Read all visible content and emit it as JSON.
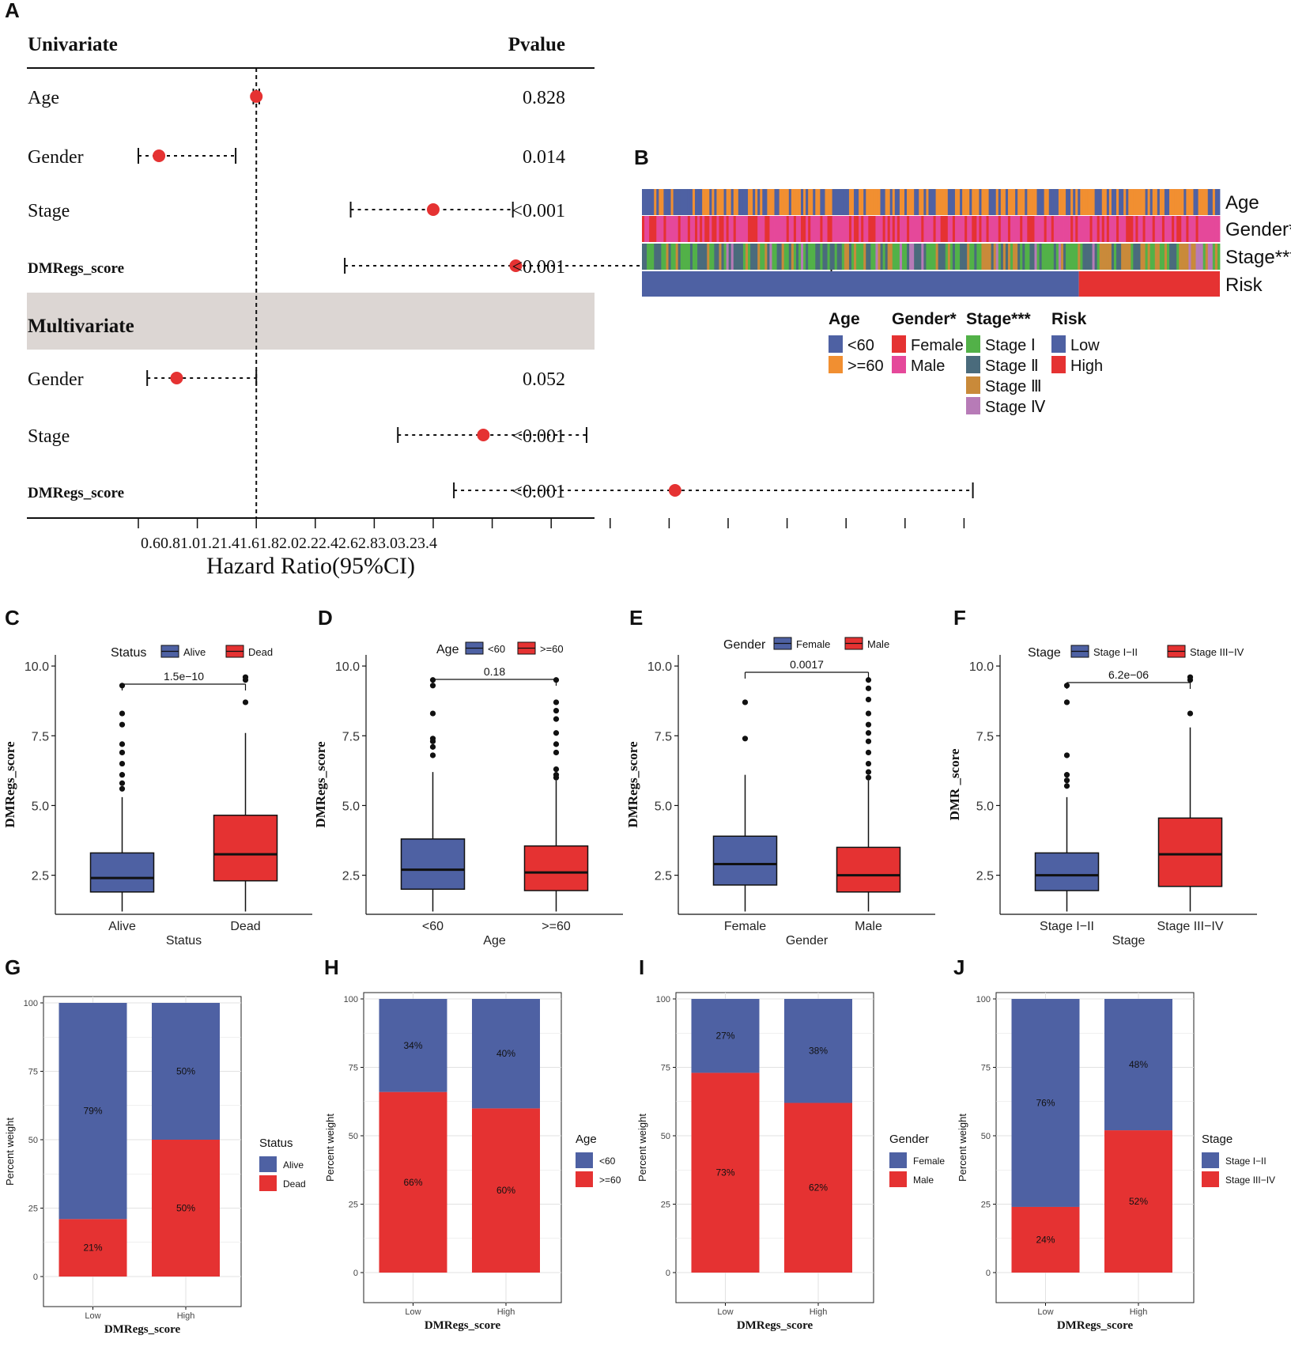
{
  "colors": {
    "blue": "#4e61a3",
    "red": "#e53232",
    "orange": "#f18f31",
    "pink": "#e5489a",
    "green": "#52b148",
    "slate": "#4a6b7c",
    "ochre": "#c98a3a",
    "violet": "#b77bb7",
    "shade": "#dcd6d3"
  },
  "panel_labels": [
    "A",
    "B",
    "C",
    "D",
    "E",
    "F",
    "G",
    "H",
    "I",
    "J"
  ],
  "chart_data": [
    {
      "panel": "A",
      "type": "forest",
      "header_left": "Univariate",
      "header_right": "Pvalue",
      "multi_header": "Multivariate",
      "xlabel": "Hazard Ratio(95%CI)",
      "xlim": [
        0.6,
        3.4
      ],
      "xticks": [
        0.6,
        0.8,
        1.0,
        1.2,
        1.4,
        1.6,
        1.8,
        2.0,
        2.2,
        2.4,
        2.6,
        2.8,
        3.0,
        3.2,
        3.4
      ],
      "xtick_labels": "0.60.81.01.21.41.61.82.02.22.42.62.83.03.23.4",
      "univariate": [
        {
          "name": "Age",
          "hr": 1.0,
          "lo": 0.99,
          "hi": 1.01,
          "p": "0.828",
          "bold": false
        },
        {
          "name": "Gender",
          "hr": 0.67,
          "lo": 0.6,
          "hi": 0.93,
          "p": "0.014",
          "bold": false
        },
        {
          "name": "Stage",
          "hr": 1.6,
          "lo": 1.32,
          "hi": 1.87,
          "p": "<0.001",
          "bold": false
        },
        {
          "name": "DMRegs_score",
          "hr": 1.88,
          "lo": 1.3,
          "hi": 2.95,
          "p": "<0.001",
          "bold": true
        }
      ],
      "multivariate": [
        {
          "name": "Gender",
          "hr": 0.73,
          "lo": 0.63,
          "hi": 1.0,
          "p": "0.052",
          "bold": false
        },
        {
          "name": "Stage",
          "hr": 1.77,
          "lo": 1.48,
          "hi": 2.12,
          "p": "<0.001",
          "bold": false
        },
        {
          "name": "DMRegs_score",
          "hr": 2.42,
          "lo": 1.67,
          "hi": 3.43,
          "p": "<0.001",
          "bold": true
        }
      ]
    },
    {
      "panel": "B",
      "type": "heatmap",
      "rows": [
        "Age",
        "Gender*",
        "Stage***",
        "Risk"
      ],
      "risk_low_fraction": 0.756,
      "legends": [
        {
          "title": "Age",
          "items": [
            {
              "label": "<60",
              "color": "#4e61a3"
            },
            {
              "label": ">=60",
              "color": "#f18f31"
            }
          ]
        },
        {
          "title": "Gender*",
          "items": [
            {
              "label": "Female",
              "color": "#e53232"
            },
            {
              "label": "Male",
              "color": "#e5489a"
            }
          ]
        },
        {
          "title": "Stage***",
          "items": [
            {
              "label": "Stage Ⅰ",
              "color": "#52b148"
            },
            {
              "label": "Stage Ⅱ",
              "color": "#4a6b7c"
            },
            {
              "label": "Stage Ⅲ",
              "color": "#c98a3a"
            },
            {
              "label": "Stage Ⅳ",
              "color": "#b77bb7"
            }
          ]
        },
        {
          "title": "Risk",
          "items": [
            {
              "label": "Low",
              "color": "#4e61a3"
            },
            {
              "label": "High",
              "color": "#e53232"
            }
          ]
        }
      ]
    },
    {
      "panel": "C",
      "type": "boxplot",
      "legend_title": "Status",
      "groups": [
        "Alive",
        "Dead"
      ],
      "xlabel": "Status",
      "ylabel": "DMRegs_score",
      "ylim": [
        1.1,
        10.4
      ],
      "yticks": [
        2.5,
        5.0,
        7.5,
        10.0
      ],
      "pvalue": "1.5e−10",
      "boxes": [
        {
          "group": "Alive",
          "min": 1.2,
          "q1": 1.9,
          "median": 2.4,
          "q3": 3.3,
          "max": 5.3,
          "outliers": [
            5.6,
            5.8,
            6.1,
            6.5,
            6.9,
            7.2,
            7.9,
            8.3,
            9.3
          ]
        },
        {
          "group": "Dead",
          "min": 1.2,
          "q1": 2.3,
          "median": 3.25,
          "q3": 4.65,
          "max": 7.6,
          "outliers": [
            8.7,
            9.5,
            9.6
          ]
        }
      ]
    },
    {
      "panel": "D",
      "type": "boxplot",
      "legend_title": "Age",
      "groups": [
        "<60",
        ">=60"
      ],
      "xlabel": "Age",
      "ylabel": "DMRegs_score",
      "ylim": [
        1.1,
        10.4
      ],
      "yticks": [
        2.5,
        5.0,
        7.5,
        10.0
      ],
      "pvalue": "0.18",
      "boxes": [
        {
          "group": "<60",
          "min": 1.2,
          "q1": 2.0,
          "median": 2.7,
          "q3": 3.8,
          "max": 6.2,
          "outliers": [
            6.8,
            7.1,
            7.3,
            7.4,
            8.3,
            9.3,
            9.5
          ]
        },
        {
          "group": ">=60",
          "min": 1.2,
          "q1": 1.95,
          "median": 2.6,
          "q3": 3.55,
          "max": 5.9,
          "outliers": [
            6.0,
            6.1,
            6.3,
            6.9,
            7.2,
            7.6,
            8.1,
            8.4,
            8.7,
            9.5
          ]
        }
      ]
    },
    {
      "panel": "E",
      "type": "boxplot",
      "legend_title": "Gender",
      "groups": [
        "Female",
        "Male"
      ],
      "xlabel": "Gender",
      "ylabel": "DMRegs_score",
      "ylim": [
        1.1,
        10.4
      ],
      "yticks": [
        2.5,
        5.0,
        7.5,
        10.0
      ],
      "pvalue": "0.0017",
      "boxes": [
        {
          "group": "Female",
          "min": 1.2,
          "q1": 2.15,
          "median": 2.9,
          "q3": 3.9,
          "max": 6.1,
          "outliers": [
            7.4,
            8.7
          ]
        },
        {
          "group": "Male",
          "min": 1.2,
          "q1": 1.9,
          "median": 2.5,
          "q3": 3.5,
          "max": 5.9,
          "outliers": [
            6.0,
            6.2,
            6.5,
            6.9,
            7.3,
            7.6,
            7.9,
            8.3,
            8.8,
            9.2,
            9.5
          ]
        }
      ]
    },
    {
      "panel": "F",
      "type": "boxplot",
      "legend_title": "Stage",
      "groups": [
        "Stage I−II",
        "Stage III−IV"
      ],
      "xlabel": "Stage",
      "ylabel": "DMR    _score",
      "ylim": [
        1.1,
        10.4
      ],
      "yticks": [
        2.5,
        5.0,
        7.5,
        10.0
      ],
      "pvalue": "6.2e−06",
      "boxes": [
        {
          "group": "Stage I−II",
          "min": 1.2,
          "q1": 1.95,
          "median": 2.5,
          "q3": 3.3,
          "max": 5.3,
          "outliers": [
            5.7,
            5.9,
            6.1,
            6.8,
            8.7,
            9.3
          ]
        },
        {
          "group": "Stage III−IV",
          "min": 1.2,
          "q1": 2.1,
          "median": 3.25,
          "q3": 4.55,
          "max": 7.8,
          "outliers": [
            8.3,
            9.5,
            9.6
          ]
        }
      ]
    },
    {
      "panel": "G",
      "type": "stacked_bar",
      "categories": [
        "Low",
        "High"
      ],
      "xlabel": "DMRegs_score",
      "ylabel": "Percent weight",
      "ylim": [
        0,
        100
      ],
      "yticks": [
        0,
        25,
        50,
        75,
        100
      ],
      "legend_title": "Status",
      "series": [
        {
          "name": "Alive",
          "values": [
            79,
            50
          ]
        },
        {
          "name": "Dead",
          "values": [
            21,
            50
          ]
        }
      ]
    },
    {
      "panel": "H",
      "type": "stacked_bar",
      "categories": [
        "Low",
        "High"
      ],
      "xlabel": "DMRegs_score",
      "ylabel": "Percent weight",
      "ylim": [
        0,
        100
      ],
      "yticks": [
        0,
        25,
        50,
        75,
        100
      ],
      "legend_title": "Age",
      "series": [
        {
          "name": "<60",
          "values": [
            34,
            40
          ]
        },
        {
          "name": ">=60",
          "values": [
            66,
            60
          ]
        }
      ]
    },
    {
      "panel": "I",
      "type": "stacked_bar",
      "categories": [
        "Low",
        "High"
      ],
      "xlabel": "DMRegs_score",
      "ylabel": "Percent weight",
      "ylim": [
        0,
        100
      ],
      "yticks": [
        0,
        25,
        50,
        75,
        100
      ],
      "legend_title": "Gender",
      "series": [
        {
          "name": "Female",
          "values": [
            27,
            38
          ]
        },
        {
          "name": "Male",
          "values": [
            73,
            62
          ]
        }
      ]
    },
    {
      "panel": "J",
      "type": "stacked_bar",
      "categories": [
        "Low",
        "High"
      ],
      "xlabel": "DMRegs_score",
      "ylabel": "Percent weight",
      "ylim": [
        0,
        100
      ],
      "yticks": [
        0,
        25,
        50,
        75,
        100
      ],
      "legend_title": "Stage",
      "series": [
        {
          "name": "Stage I−II",
          "values": [
            76,
            48
          ]
        },
        {
          "name": "Stage III−IV",
          "values": [
            24,
            52
          ]
        }
      ]
    }
  ]
}
